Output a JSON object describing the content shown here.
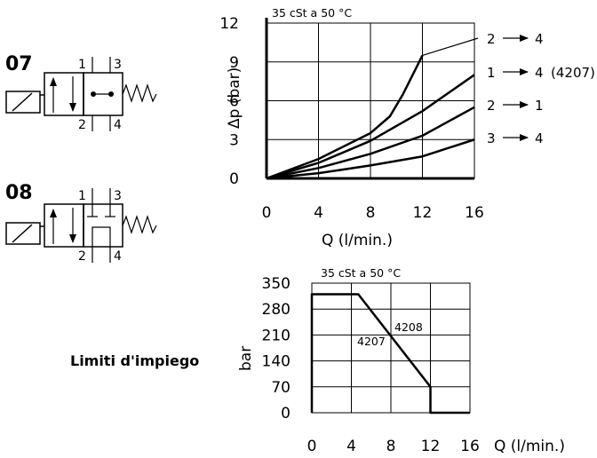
{
  "symbols": [
    {
      "code": "07",
      "ports": {
        "p1": "1",
        "p3": "3",
        "p2": "2",
        "p4": "4"
      }
    },
    {
      "code": "08",
      "ports": {
        "p1": "1",
        "p3": "3",
        "p2": "2",
        "p4": "4"
      }
    }
  ],
  "usage_label": "Limiti d'impiego",
  "chart_data": [
    {
      "type": "line",
      "title": "35 cSt a 50 °C",
      "xlabel": "Q (l/min.)",
      "ylabel": "Δp (bar)",
      "xlim": [
        0,
        16
      ],
      "ylim": [
        0,
        12
      ],
      "xticks": [
        "0",
        "4",
        "8",
        "12",
        "16"
      ],
      "yticks": [
        "0",
        "3",
        "6",
        "9",
        "12"
      ],
      "grid": true,
      "series": [
        {
          "name": "2 → 4",
          "arrow_label": {
            "from": "2",
            "to": "4",
            "suffix": ""
          },
          "x": [
            0,
            4,
            8,
            9.5,
            10.5,
            12
          ],
          "y": [
            0,
            1.5,
            3.5,
            4.8,
            6.5,
            9.5
          ]
        },
        {
          "name": "1 → 4 (4207)",
          "arrow_label": {
            "from": "1",
            "to": "4",
            "suffix": "(4207)"
          },
          "x": [
            0,
            4,
            8,
            12,
            16
          ],
          "y": [
            0,
            1.2,
            2.9,
            5.2,
            8.0
          ]
        },
        {
          "name": "2 → 1",
          "arrow_label": {
            "from": "2",
            "to": "1",
            "suffix": ""
          },
          "x": [
            0,
            4,
            8,
            12,
            16
          ],
          "y": [
            0,
            0.8,
            1.9,
            3.3,
            5.5
          ]
        },
        {
          "name": "3 → 4",
          "arrow_label": {
            "from": "3",
            "to": "4",
            "suffix": ""
          },
          "x": [
            0,
            4,
            8,
            12,
            16
          ],
          "y": [
            0,
            0.4,
            1.0,
            1.7,
            3.0
          ]
        }
      ]
    },
    {
      "type": "line",
      "title": "35 cSt a 50 °C",
      "xlabel": "Q (l/min.)",
      "ylabel": "bar",
      "xlim": [
        0,
        16
      ],
      "ylim": [
        0,
        350
      ],
      "xticks": [
        "0",
        "4",
        "8",
        "12",
        "16"
      ],
      "yticks": [
        "0",
        "70",
        "140",
        "210",
        "280",
        "350"
      ],
      "grid": true,
      "envelope": {
        "x": [
          0,
          0,
          4.7,
          12,
          12,
          16
        ],
        "y": [
          0,
          320,
          320,
          70,
          0,
          0
        ]
      },
      "annotations": [
        "4208",
        "4207"
      ]
    }
  ]
}
